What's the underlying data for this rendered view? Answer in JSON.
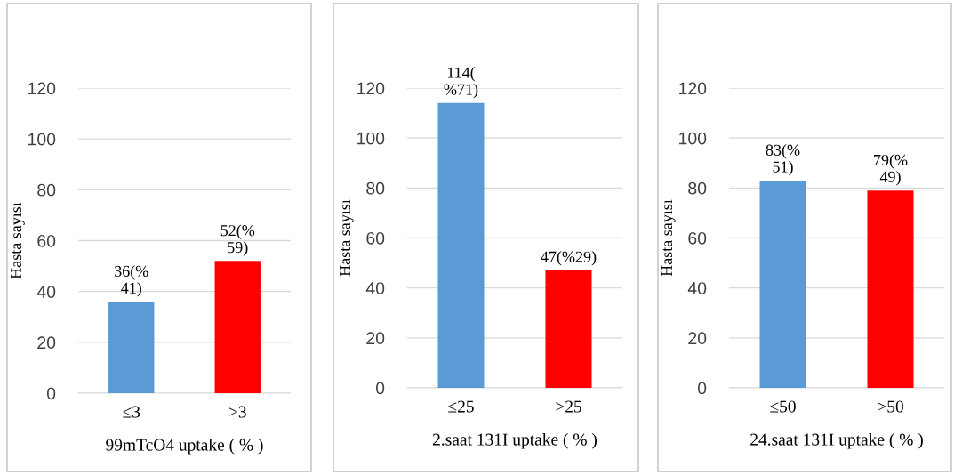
{
  "chart_data": [
    {
      "type": "bar",
      "categories": [
        "≤3",
        ">3"
      ],
      "values": [
        36,
        52
      ],
      "colors": [
        "#5b9bd5",
        "#ff0000"
      ],
      "value_labels": [
        "36(%\n41)",
        "52(%\n59)"
      ],
      "xlabel": "99mTcO4 uptake ( % )",
      "ylabel": "Hasta sayısı",
      "ylim": [
        0,
        120
      ],
      "yticks": [
        0,
        20,
        40,
        60,
        80,
        100,
        120
      ],
      "grid": "y",
      "legend": false
    },
    {
      "type": "bar",
      "categories": [
        "≤25",
        ">25"
      ],
      "values": [
        114,
        47
      ],
      "colors": [
        "#5b9bd5",
        "#ff0000"
      ],
      "value_labels": [
        "114(\n%71)",
        "47(%29)"
      ],
      "xlabel": "2.saat 131I uptake ( % )",
      "ylabel": "Hasta sayısı",
      "ylim": [
        0,
        120
      ],
      "yticks": [
        0,
        20,
        40,
        60,
        80,
        100,
        120
      ],
      "grid": "y",
      "legend": false
    },
    {
      "type": "bar",
      "categories": [
        "≤50",
        ">50"
      ],
      "values": [
        83,
        79
      ],
      "colors": [
        "#5b9bd5",
        "#ff0000"
      ],
      "value_labels": [
        "83(%\n51)",
        "79(%\n49)"
      ],
      "xlabel": "24.saat 131I uptake ( % )",
      "ylabel": "Hasta sayısı",
      "ylim": [
        0,
        120
      ],
      "yticks": [
        0,
        20,
        40,
        60,
        80,
        100,
        120
      ],
      "grid": "y",
      "legend": false
    }
  ]
}
